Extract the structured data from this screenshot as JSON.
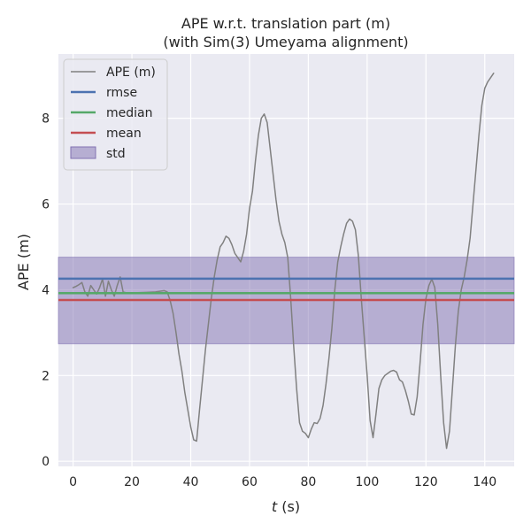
{
  "chart_data": {
    "type": "line",
    "title": [
      "APE w.r.t. translation part (m)",
      "(with Sim(3) Umeyama alignment)"
    ],
    "xlabel": "t (s)",
    "ylabel": "APE (m)",
    "xlim": [
      -5,
      150
    ],
    "ylim": [
      -0.12,
      9.5
    ],
    "xticks": [
      0,
      20,
      40,
      60,
      80,
      100,
      120,
      140
    ],
    "yticks": [
      0,
      2,
      4,
      6,
      8
    ],
    "grid": true,
    "legend_position": "top-left",
    "series": [
      {
        "name": "APE (m)",
        "color": "#808080",
        "x": [
          0,
          1,
          2,
          3,
          4,
          5,
          6,
          7,
          8,
          9,
          10,
          11,
          12,
          13,
          14,
          15,
          16,
          17,
          18,
          20,
          22,
          25,
          28,
          31,
          32,
          33,
          34,
          35,
          36,
          37,
          38,
          39,
          40,
          41,
          42,
          43,
          44,
          45,
          46,
          47,
          48,
          49,
          50,
          51,
          52,
          53,
          54,
          55,
          56,
          57,
          58,
          59,
          60,
          61,
          62,
          63,
          64,
          65,
          66,
          67,
          68,
          69,
          70,
          71,
          72,
          73,
          74,
          75,
          76,
          77,
          78,
          79,
          80,
          81,
          82,
          83,
          84,
          85,
          86,
          87,
          88,
          89,
          90,
          91,
          92,
          93,
          94,
          95,
          96,
          97,
          98,
          99,
          100,
          101,
          102,
          103,
          104,
          105,
          106,
          107,
          108,
          109,
          110,
          111,
          112,
          113,
          114,
          115,
          116,
          117,
          118,
          119,
          120,
          121,
          122,
          123,
          124,
          125,
          126,
          127,
          128,
          129,
          130,
          131,
          132,
          133,
          134,
          135,
          136,
          137,
          138,
          139,
          140,
          141,
          142,
          143
        ],
        "values": [
          4.05,
          4.08,
          4.12,
          4.17,
          3.95,
          3.85,
          4.1,
          4.0,
          3.9,
          4.05,
          4.25,
          3.85,
          4.2,
          4.0,
          3.85,
          4.1,
          4.3,
          3.95,
          3.93,
          3.92,
          3.93,
          3.94,
          3.95,
          3.98,
          3.95,
          3.75,
          3.45,
          3.0,
          2.5,
          2.1,
          1.6,
          1.2,
          0.8,
          0.5,
          0.47,
          1.2,
          1.9,
          2.6,
          3.2,
          3.8,
          4.3,
          4.7,
          5.0,
          5.1,
          5.25,
          5.2,
          5.05,
          4.85,
          4.75,
          4.65,
          4.9,
          5.3,
          5.9,
          6.3,
          7.0,
          7.6,
          8.0,
          8.1,
          7.9,
          7.3,
          6.7,
          6.1,
          5.6,
          5.3,
          5.1,
          4.75,
          3.8,
          2.7,
          1.7,
          0.9,
          0.7,
          0.65,
          0.55,
          0.75,
          0.9,
          0.88,
          1.0,
          1.3,
          1.8,
          2.4,
          3.1,
          4.0,
          4.65,
          5.0,
          5.3,
          5.55,
          5.65,
          5.6,
          5.4,
          4.8,
          3.8,
          2.9,
          2.0,
          0.95,
          0.55,
          1.1,
          1.7,
          1.9,
          2.0,
          2.05,
          2.1,
          2.12,
          2.08,
          1.9,
          1.85,
          1.65,
          1.4,
          1.1,
          1.08,
          1.5,
          2.3,
          3.2,
          3.8,
          4.1,
          4.25,
          4.05,
          3.2,
          2.0,
          0.9,
          0.3,
          0.7,
          1.7,
          2.7,
          3.5,
          4.0,
          4.3,
          4.7,
          5.2,
          6.0,
          6.8,
          7.6,
          8.3,
          8.7,
          8.85,
          8.95,
          9.05
        ],
        "linewidth": 1.5
      },
      {
        "name": "rmse",
        "color": "#4c72b0",
        "value": 4.26
      },
      {
        "name": "median",
        "color": "#55a868",
        "value": 3.92
      },
      {
        "name": "mean",
        "color": "#c44e52",
        "value": 3.76
      },
      {
        "name": "std",
        "color": "#8172b2",
        "lower": 2.74,
        "upper": 4.76
      }
    ]
  },
  "colors": {
    "plot_background": "#eaeaf2",
    "grid": "#ffffff",
    "text": "#262626"
  }
}
